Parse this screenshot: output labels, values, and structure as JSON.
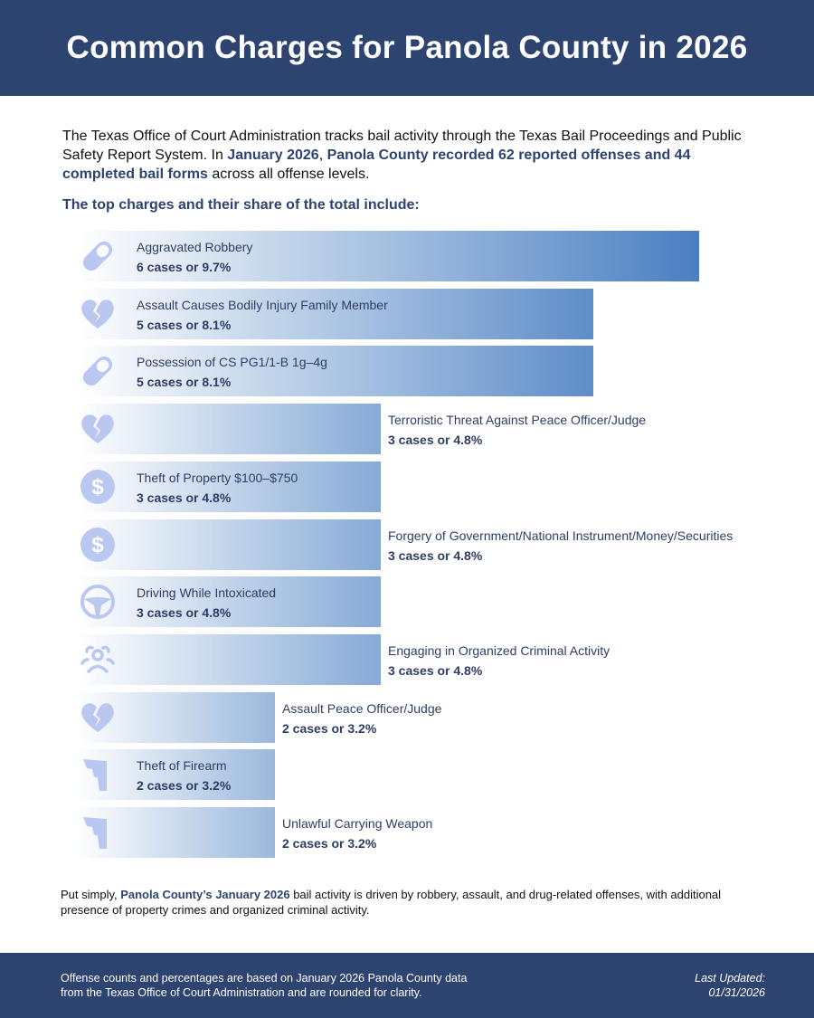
{
  "header": {
    "title": "Common Charges for Panola County in 2026"
  },
  "intro": {
    "p1": "The Texas Office of Court Administration tracks bail activity through the Texas Bail Proceedings and Public Safety Report System. In ",
    "h1": "January 2026",
    "p2": ", ",
    "h2": "Panola County recorded 62 reported offenses and 44 completed bail forms",
    "p3": " across all offense levels."
  },
  "subhead": "The top charges and their share of the total include:",
  "colors": {
    "brand": "#2e4470",
    "bar_end": "#4a7fc1",
    "bar_start": "#ffffff",
    "icon": "#bac8f1"
  },
  "chart_data": {
    "type": "bar",
    "orientation": "horizontal",
    "unit": "cases",
    "items": [
      {
        "label": "Aggravated Robbery",
        "value": 6,
        "display": "6 cases or 9.7%",
        "icon": "pill-icon"
      },
      {
        "label": "Assault Causes Bodily Injury Family Member",
        "value": 5,
        "display": "5 cases or 8.1%",
        "icon": "broken-heart-icon"
      },
      {
        "label": "Possession of CS PG1/1-B 1g–4g",
        "value": 5,
        "display": "5 cases or 8.1%",
        "icon": "pill-icon"
      },
      {
        "label": "Terroristic Threat Against Peace Officer/Judge",
        "value": 3,
        "display": "3 cases or 4.8%",
        "icon": "broken-heart-icon"
      },
      {
        "label": "Theft of Property $100–$750",
        "value": 3,
        "display": "3 cases or 4.8%",
        "icon": "dollar-icon"
      },
      {
        "label": "Forgery of Government/National Instrument/Money/Securities",
        "value": 3,
        "display": "3 cases or 4.8%",
        "icon": "dollar-icon"
      },
      {
        "label": "Driving While Intoxicated",
        "value": 3,
        "display": "3 cases or 4.8%",
        "icon": "steering-wheel-icon"
      },
      {
        "label": "Engaging in Organized Criminal Activity",
        "value": 3,
        "display": "3 cases or 4.8%",
        "icon": "group-icon"
      },
      {
        "label": "Assault Peace Officer/Judge",
        "value": 2,
        "display": "2 cases or 3.2%",
        "icon": "broken-heart-icon"
      },
      {
        "label": "Theft of Firearm",
        "value": 2,
        "display": "2 cases or 3.2%",
        "icon": "gun-icon"
      },
      {
        "label": "Unlawful Carrying Weapon",
        "value": 2,
        "display": "2 cases or 3.2%",
        "icon": "gun-icon"
      }
    ]
  },
  "closing": {
    "p1": "Put simply, ",
    "h1": "Panola County’s January 2026",
    "p2": " bail activity is driven by robbery, assault, and drug-related offenses, with additional presence of property crimes and organized criminal activity."
  },
  "footer": {
    "note": "Offense counts and percentages are based on January 2026 Panola County data from the Texas Office of Court Administration and are rounded for clarity.",
    "updated_label": "Last Updated:",
    "updated_date": "01/31/2026"
  }
}
